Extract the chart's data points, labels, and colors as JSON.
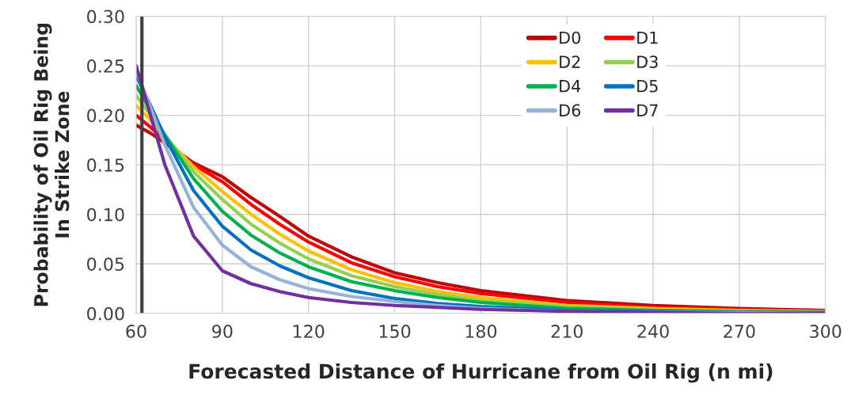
{
  "chart_data": {
    "type": "line",
    "xlabel": "Forecasted Distance of Hurricane from Oil Rig (n mi)",
    "ylabel": "Probability of Oil Rig Being\nIn Strike Zone",
    "x": [
      60,
      65,
      70,
      80,
      90,
      100,
      110,
      120,
      135,
      150,
      165,
      180,
      210,
      240,
      270,
      300
    ],
    "series": [
      {
        "name": "D0",
        "color": "#c00000",
        "values": [
          0.19,
          0.182,
          0.172,
          0.152,
          0.138,
          0.117,
          0.098,
          0.078,
          0.057,
          0.041,
          0.031,
          0.023,
          0.013,
          0.008,
          0.005,
          0.003
        ]
      },
      {
        "name": "D1",
        "color": "#ff0000",
        "values": [
          0.2,
          0.188,
          0.175,
          0.15,
          0.133,
          0.11,
          0.09,
          0.072,
          0.051,
          0.037,
          0.027,
          0.02,
          0.011,
          0.006,
          0.004,
          0.002
        ]
      },
      {
        "name": "D2",
        "color": "#ffc000",
        "values": [
          0.21,
          0.195,
          0.178,
          0.148,
          0.123,
          0.1,
          0.08,
          0.063,
          0.044,
          0.031,
          0.022,
          0.016,
          0.008,
          0.005,
          0.003,
          0.002
        ]
      },
      {
        "name": "D3",
        "color": "#92d050",
        "values": [
          0.22,
          0.2,
          0.18,
          0.143,
          0.115,
          0.09,
          0.071,
          0.055,
          0.038,
          0.027,
          0.019,
          0.013,
          0.007,
          0.004,
          null,
          null
        ]
      },
      {
        "name": "D4",
        "color": "#00b050",
        "values": [
          0.23,
          0.205,
          0.18,
          0.136,
          0.103,
          0.079,
          0.061,
          0.047,
          0.032,
          0.023,
          0.016,
          0.011,
          0.005,
          0.003,
          0.002,
          0.001
        ]
      },
      {
        "name": "D5",
        "color": "#0070c0",
        "values": [
          0.24,
          0.21,
          0.178,
          0.124,
          0.088,
          0.064,
          0.048,
          0.036,
          0.023,
          0.015,
          0.01,
          0.007,
          0.003,
          0.002,
          0.001,
          0.001
        ]
      },
      {
        "name": "D6",
        "color": "#95b3d7",
        "values": [
          0.245,
          0.208,
          0.17,
          0.107,
          0.069,
          0.047,
          0.034,
          0.025,
          0.017,
          0.012,
          0.008,
          0.005,
          0.002,
          0.001,
          0.001,
          0.0
        ]
      },
      {
        "name": "D7",
        "color": "#7030a0",
        "values": [
          0.25,
          0.2,
          0.15,
          0.078,
          0.043,
          0.03,
          0.022,
          0.016,
          0.011,
          0.008,
          0.006,
          0.004,
          0.002,
          0.001,
          0.0,
          0.0
        ]
      }
    ],
    "xlim": [
      60,
      300
    ],
    "xticks": [
      60,
      90,
      120,
      150,
      180,
      210,
      240,
      270,
      300
    ],
    "ylim": [
      0,
      0.3
    ],
    "yticks": [
      {
        "value": 0,
        "label": "0.00"
      },
      {
        "value": 0.05,
        "label": "0.05"
      },
      {
        "value": 0.1,
        "label": "0.10"
      },
      {
        "value": 0.15,
        "label": "0.15"
      },
      {
        "value": 0.2,
        "label": "0.20"
      },
      {
        "value": 0.25,
        "label": "0.25"
      },
      {
        "value": 0.3,
        "label": "0.30"
      }
    ],
    "ref_lines": [
      {
        "axis": "x",
        "value": 62,
        "color": "#404040"
      }
    ],
    "grid": true,
    "legend": "top right",
    "marker": "none",
    "line_style": "solid"
  }
}
